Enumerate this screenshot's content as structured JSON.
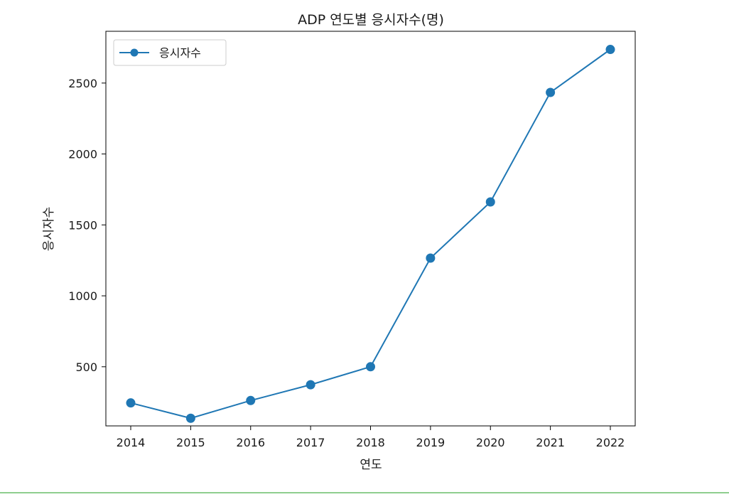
{
  "chart_data": {
    "type": "line",
    "title": "ADP 연도별 응시자수(명)",
    "xlabel": "연도",
    "ylabel": "응시자수",
    "x": [
      "2014",
      "2015",
      "2016",
      "2017",
      "2018",
      "2019",
      "2020",
      "2021",
      "2022"
    ],
    "series": [
      {
        "name": "응시자수",
        "values": [
          245,
          137,
          262,
          373,
          500,
          1266,
          1662,
          2434,
          2737
        ],
        "color": "#1f77b4",
        "marker": "circle"
      }
    ],
    "yticks": [
      "500",
      "1000",
      "1500",
      "2000",
      "2500"
    ],
    "ylim": [
      83,
      2865
    ],
    "grid": false,
    "legend": "top-left"
  }
}
